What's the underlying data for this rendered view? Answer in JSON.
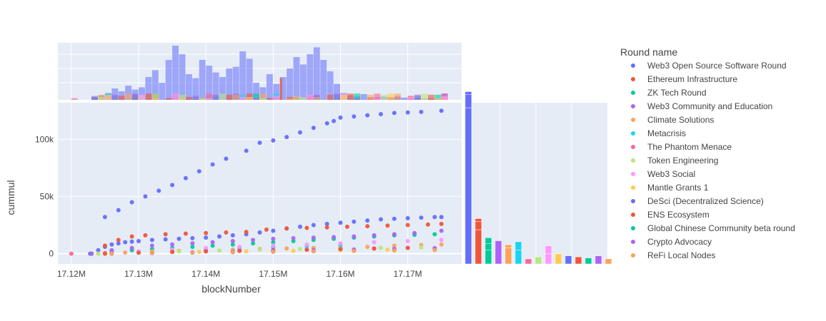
{
  "chart_data": {
    "type": "scatter",
    "xlabel": "blockNumber",
    "ylabel": "cummul",
    "xlim": [
      17118000,
      17178000
    ],
    "ylim": [
      -9000,
      132000
    ],
    "x_ticks": [
      17120000,
      17130000,
      17140000,
      17150000,
      17160000,
      17170000
    ],
    "x_tick_labels": [
      "17.12M",
      "17.13M",
      "17.14M",
      "17.15M",
      "17.16M",
      "17.17M"
    ],
    "y_ticks": [
      0,
      50000,
      100000
    ],
    "y_tick_labels": [
      "0",
      "50k",
      "100k"
    ],
    "grid": true,
    "legend_title": "Round name",
    "legend_position": "right",
    "marginal_x": "histogram",
    "marginal_y": "histogram",
    "series": [
      {
        "name": "Web3 Open Source Software Round",
        "color": "#636efa",
        "x": [
          17122800,
          17124000,
          17125000,
          17126000,
          17127000,
          17128000,
          17129000,
          17130000,
          17132000,
          17134000,
          17136000,
          17138000,
          17140000,
          17142000,
          17144000,
          17146000,
          17148000,
          17150000,
          17152000,
          17154000,
          17156000,
          17158000,
          17160000,
          17162000,
          17164000,
          17166000,
          17168000,
          17170000,
          17172000,
          17174000,
          17175000
        ],
        "y": [
          0,
          3000,
          6000,
          8000,
          9000,
          10000,
          10500,
          11000,
          12000,
          12500,
          13000,
          13500,
          14000,
          15000,
          16000,
          17000,
          18500,
          20000,
          22000,
          23500,
          25000,
          26000,
          27000,
          28000,
          29000,
          30000,
          30500,
          31000,
          31500,
          32000,
          32000
        ]
      },
      {
        "name": "Ethereum Infrastructure",
        "color": "#ef553b",
        "x": [
          17123000,
          17125000,
          17127000,
          17129000,
          17131000,
          17134000,
          17137000,
          17140000,
          17143000,
          17146000,
          17149000,
          17152000,
          17155000,
          17158000,
          17161000,
          17164000,
          17167000,
          17170000,
          17173000,
          17175000
        ],
        "y": [
          0,
          7000,
          12000,
          15000,
          16000,
          17000,
          17500,
          18000,
          18500,
          19000,
          21000,
          22000,
          22500,
          23000,
          23500,
          24000,
          24500,
          25000,
          25500,
          26000
        ]
      },
      {
        "name": "ZK Tech Round",
        "color": "#00cc96",
        "x": [
          17123000,
          17126000,
          17129000,
          17132000,
          17135000,
          17138000,
          17141000,
          17144000,
          17147000,
          17150000,
          17153000,
          17156000,
          17159000,
          17162000,
          17165000,
          17168000,
          17171000,
          17174000
        ],
        "y": [
          0,
          2000,
          3000,
          4000,
          5000,
          6000,
          7000,
          8000,
          9000,
          10000,
          11000,
          12000,
          13000,
          14000,
          15000,
          16000,
          16500,
          17000
        ]
      },
      {
        "name": "Web3 Community and Education",
        "color": "#ab63fa",
        "x": [
          17123000,
          17126000,
          17129000,
          17132000,
          17135000,
          17138000,
          17141000,
          17144000,
          17147000,
          17150000,
          17153000,
          17156000,
          17159000,
          17162000,
          17165000,
          17168000,
          17171000,
          17175000
        ],
        "y": [
          0,
          3000,
          5000,
          7000,
          8000,
          9000,
          10000,
          11000,
          12000,
          13000,
          13500,
          14000,
          14500,
          15000,
          16000,
          17000,
          18000,
          20000
        ]
      },
      {
        "name": "Climate Solutions",
        "color": "#ffa15a",
        "x": [
          17124000,
          17128000,
          17132000,
          17136000,
          17140000,
          17144000,
          17148000,
          17152000,
          17156000,
          17160000,
          17164000,
          17168000,
          17172000,
          17175000
        ],
        "y": [
          0,
          1000,
          2000,
          2500,
          3000,
          3500,
          4000,
          4500,
          5000,
          5500,
          6000,
          7000,
          7500,
          8000
        ]
      },
      {
        "name": "Metacrisis",
        "color": "#19d3f3",
        "x": [
          17125000,
          17130000,
          17135000,
          17140000,
          17145000,
          17150000,
          17155000,
          17160000
        ],
        "y": [
          0,
          1500,
          2500,
          3500,
          4500,
          5500,
          6500,
          7000
        ]
      },
      {
        "name": "The Phantom Menace",
        "color": "#ff6692",
        "x": [
          17120000,
          17125000,
          17130000,
          17135000,
          17140000,
          17145000,
          17150000,
          17155000,
          17160000,
          17165000,
          17170000
        ],
        "y": [
          0,
          500,
          1000,
          1500,
          2000,
          2500,
          3000,
          3500,
          4000,
          4500,
          5000
        ]
      },
      {
        "name": "Token Engineering",
        "color": "#b6e880",
        "x": [
          17124000,
          17130000,
          17136000,
          17142000,
          17148000,
          17154000,
          17160000,
          17166000,
          17172000
        ],
        "y": [
          0,
          1000,
          2000,
          2800,
          3500,
          4000,
          4500,
          5000,
          5500
        ]
      },
      {
        "name": "Web3 Social",
        "color": "#ff97ff",
        "x": [
          17125000,
          17130000,
          17135000,
          17140000,
          17145000,
          17150000,
          17155000,
          17160000,
          17165000,
          17170000,
          17175000
        ],
        "y": [
          0,
          2000,
          3500,
          5000,
          6000,
          7000,
          8000,
          9000,
          10000,
          11000,
          12000
        ]
      },
      {
        "name": "Mantle Grants 1",
        "color": "#fecb52",
        "x": [
          17125000,
          17132000,
          17139000,
          17146000,
          17153000,
          17160000,
          17167000,
          17174000
        ],
        "y": [
          0,
          800,
          1500,
          2000,
          2500,
          3000,
          3500,
          4000
        ]
      },
      {
        "name": "DeSci (Decentralized Science)",
        "color": "#636efa",
        "x": [
          17125000,
          17127000,
          17129000,
          17131000,
          17133000,
          17135000,
          17137000,
          17139000,
          17141000,
          17143000,
          17146000,
          17148000,
          17150000,
          17152000,
          17154000,
          17156000,
          17158000,
          17159000,
          17160000,
          17162000,
          17164000,
          17166000,
          17168000,
          17170000,
          17172000,
          17175000
        ],
        "y": [
          32000,
          38000,
          45000,
          50000,
          55000,
          60000,
          66000,
          72000,
          78000,
          83000,
          90000,
          97000,
          99000,
          102000,
          106000,
          110000,
          114000,
          116000,
          119000,
          120000,
          121000,
          122000,
          123000,
          123500,
          124000,
          125000
        ]
      },
      {
        "name": "ENS Ecosystem",
        "color": "#ef553b",
        "x": [
          17125000,
          17130000,
          17135000,
          17140000,
          17145000,
          17150000,
          17155000,
          17160000,
          17165000,
          17170000
        ],
        "y": [
          0,
          800,
          1500,
          2000,
          2500,
          3000,
          3500,
          4000,
          4500,
          5000
        ]
      },
      {
        "name": "Global Chinese Community beta round",
        "color": "#00cc96",
        "x": [
          17126000,
          17132000,
          17138000,
          17144000,
          17150000,
          17156000,
          17162000,
          17168000,
          17174000
        ],
        "y": [
          0,
          500,
          1000,
          1500,
          2000,
          2500,
          3000,
          3500,
          4000
        ]
      },
      {
        "name": "Crypto Advocacy",
        "color": "#ab63fa",
        "x": [
          17126000,
          17132000,
          17138000,
          17144000,
          17150000,
          17156000,
          17162000,
          17168000,
          17174000
        ],
        "y": [
          0,
          600,
          1200,
          1800,
          2400,
          3000,
          3600,
          4200,
          4800
        ]
      },
      {
        "name": "ReFi Local Nodes",
        "color": "#ffa15a",
        "x": [
          17126000,
          17132000,
          17138000,
          17144000,
          17150000,
          17156000,
          17162000,
          17168000,
          17174000
        ],
        "y": [
          0,
          400,
          800,
          1200,
          1600,
          2000,
          2400,
          2800,
          3200
        ]
      }
    ],
    "marginal_y_histogram": {
      "range": [
        0,
        160
      ],
      "counts": [
        [
          155,
          13,
          3
        ],
        [
          34,
          8,
          3
        ],
        [
          14,
          6,
          6
        ],
        [
          23
        ],
        [
          16,
          3
        ],
        [
          14,
          8
        ],
        [
          5
        ],
        [
          7
        ],
        [
          10,
          8
        ],
        [
          10
        ],
        [
          8
        ],
        [
          7
        ],
        [
          6
        ],
        [
          8
        ],
        [
          5
        ]
      ]
    },
    "marginal_x_histogram": {
      "series_index": 0,
      "range": [
        0,
        100
      ],
      "bins": [
        [
          17123000,
          5
        ],
        [
          17124000,
          8
        ],
        [
          17125000,
          12
        ],
        [
          17126000,
          20
        ],
        [
          17127000,
          15
        ],
        [
          17128000,
          25
        ],
        [
          17129000,
          18
        ],
        [
          17130000,
          22
        ],
        [
          17131000,
          40
        ],
        [
          17132000,
          52
        ],
        [
          17133000,
          30
        ],
        [
          17134000,
          70
        ],
        [
          17135000,
          95
        ],
        [
          17136000,
          80
        ],
        [
          17137000,
          45
        ],
        [
          17138000,
          38
        ],
        [
          17139000,
          70
        ],
        [
          17140000,
          60
        ],
        [
          17141000,
          48
        ],
        [
          17142000,
          40
        ],
        [
          17143000,
          55
        ],
        [
          17144000,
          58
        ],
        [
          17145000,
          85
        ],
        [
          17146000,
          72
        ],
        [
          17147000,
          30
        ],
        [
          17148000,
          22
        ],
        [
          17149000,
          45
        ],
        [
          17150000,
          28
        ],
        [
          17151000,
          40
        ],
        [
          17152000,
          55
        ],
        [
          17153000,
          75
        ],
        [
          17154000,
          62
        ],
        [
          17155000,
          80
        ],
        [
          17156000,
          92
        ],
        [
          17157000,
          70
        ],
        [
          17158000,
          50
        ],
        [
          17159000,
          28
        ],
        [
          17160000,
          12
        ],
        [
          17161000,
          8
        ],
        [
          17162000,
          6
        ],
        [
          17163000,
          10
        ],
        [
          17164000,
          5
        ],
        [
          17165000,
          4
        ],
        [
          17166000,
          6
        ],
        [
          17167000,
          3
        ],
        [
          17168000,
          5
        ],
        [
          17169000,
          4
        ],
        [
          17170000,
          3
        ],
        [
          17171000,
          4
        ],
        [
          17172000,
          2
        ],
        [
          17173000,
          3
        ],
        [
          17174000,
          2
        ]
      ],
      "overlay_series_indices": [
        1,
        2,
        3,
        4,
        5,
        6,
        7,
        8,
        9
      ]
    }
  }
}
